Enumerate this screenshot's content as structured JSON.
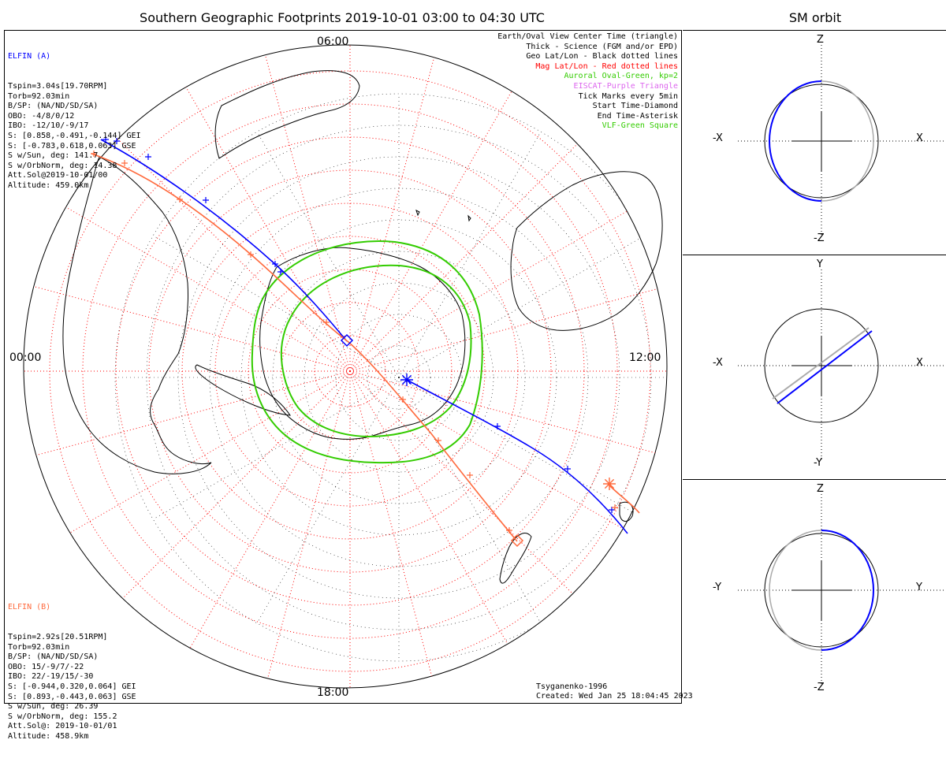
{
  "title": "Southern Geographic Footprints 2019-10-01 03:00 to 04:30 UTC",
  "orbit_title": "SM orbit",
  "mlt_labels": {
    "top": "06:00",
    "left": "00:00",
    "right": "12:00",
    "bottom": "18:00"
  },
  "elfin_a": {
    "name": "ELFIN (A)",
    "color": "#0000ff",
    "lines": [
      "Tspin=3.04s[19.70RPM]",
      "Torb=92.03min",
      "B/SP: (NA/ND/SD/SA)",
      "OBO: -4/8/0/12",
      "IBO: -12/10/-9/17",
      "S: [0.858,-0.491,-0.144] GEI",
      "S: [-0.783,0.618,0.063] GSE",
      "S w/Sun, deg: 141.7",
      "S w/OrbNorm, deg: 14.38",
      "Att.Sol@2019-10-01/00",
      "Altitude: 459.0km"
    ]
  },
  "elfin_b": {
    "name": "ELFIN (B)",
    "color": "#ff6a3d",
    "lines": [
      "Tspin=2.92s[20.51RPM]",
      "Torb=92.03min",
      "B/SP: (NA/ND/SD/SA)",
      "OBO: 15/-9/7/-22",
      "IBO: 22/-19/15/-30",
      "S: [-0.944,0.320,0.064] GEI",
      "S: [0.893,-0.443,0.063] GSE",
      "S w/Sun, deg: 26.39",
      "S w/OrbNorm, deg: 155.2",
      "Att.Sol@: 2019-10-01/01",
      "Altitude: 458.9km"
    ]
  },
  "legend": [
    {
      "text": "Earth/Oval View Center Time (triangle)",
      "color": "#000000"
    },
    {
      "text": "Thick - Science (FGM and/or EPD)",
      "color": "#000000"
    },
    {
      "text": "Geo Lat/Lon - Black dotted lines",
      "color": "#000000"
    },
    {
      "text": "Mag Lat/Lon - Red dotted lines",
      "color": "#ff0000"
    },
    {
      "text": "Auroral Oval-Green, kp=2",
      "color": "#33cc00"
    },
    {
      "text": "EISCAT-Purple Triangle",
      "color": "#dd66ee"
    },
    {
      "text": "Tick Marks every 5min",
      "color": "#000000"
    },
    {
      "text": "Start Time-Diamond",
      "color": "#000000"
    },
    {
      "text": "End Time-Asterisk",
      "color": "#000000"
    },
    {
      "text": "VLF-Green Square",
      "color": "#33cc00"
    }
  ],
  "credits": {
    "model": "Tsyganenko-1996",
    "created": "Created: Wed Jan 25 18:04:45 2023"
  },
  "panels": [
    {
      "top": "Z",
      "bottom": "-Z",
      "left": "-X",
      "right": "X"
    },
    {
      "top": "Y",
      "bottom": "-Y",
      "left": "-X",
      "right": "X"
    },
    {
      "top": "Z",
      "bottom": "-Z",
      "left": "-Y",
      "right": "Y"
    }
  ],
  "colors": {
    "grid_mag": "#ff0000",
    "grid_geo": "#000000",
    "oval": "#33cc00",
    "orbit_back": "#aaaaaa"
  }
}
